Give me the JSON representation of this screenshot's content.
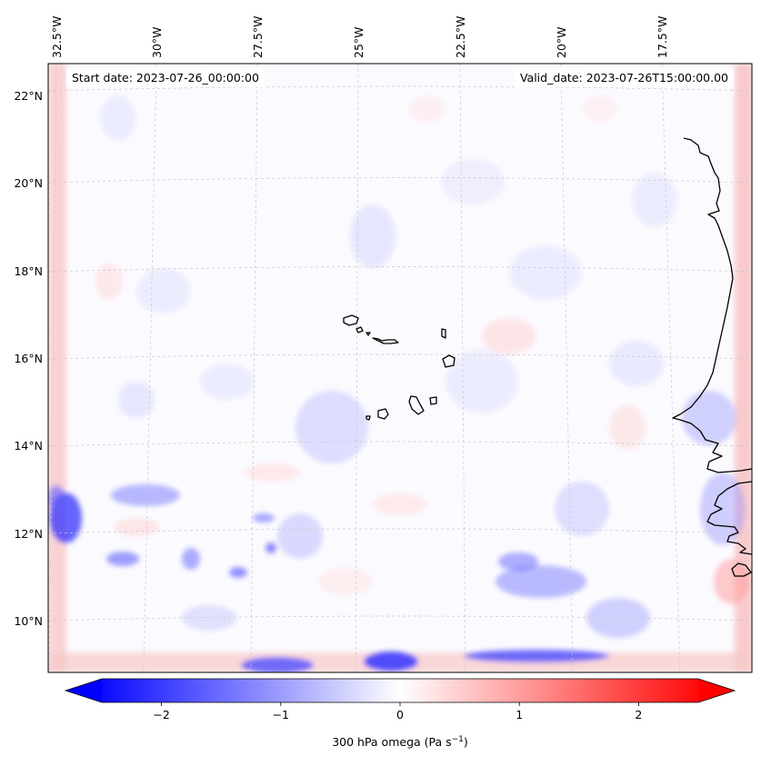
{
  "header": {
    "start_date": "Start date: 2023-07-26_00:00:00",
    "valid_date": "Valid_date: 2023-07-26T15:00:00.00"
  },
  "longitude_labels": [
    "32.5°W",
    "30°W",
    "27.5°W",
    "25°W",
    "22.5°W",
    "20°W",
    "17.5°W"
  ],
  "latitude_labels": [
    "22°N",
    "20°N",
    "18°N",
    "16°N",
    "14°N",
    "12°N",
    "10°N"
  ],
  "colorbar": {
    "label_main": "300 hPa omega (Pa s",
    "label_sup": "−1",
    "label_tail": ")",
    "ticks": [
      "−2",
      "−1",
      "0",
      "1",
      "2"
    ],
    "tick_values": [
      -2,
      -1,
      0,
      1,
      2
    ],
    "range": [
      -2.5,
      2.5
    ],
    "colormap": "bwr",
    "colors": {
      "negative": "#0000ff",
      "zero": "#ffffff",
      "positive": "#ff0000"
    },
    "extend": "both"
  },
  "map": {
    "projection": "conic",
    "coastline_color": "#000000",
    "gridlines": "dashed light grey",
    "field": "300 hPa vertical velocity (omega)"
  }
}
